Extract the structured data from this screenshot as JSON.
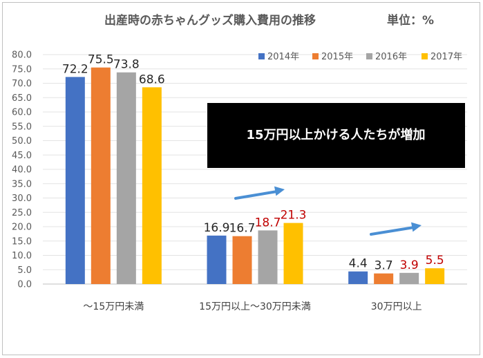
{
  "chart_data": {
    "type": "bar",
    "title": "出産時の赤ちゃんグッズ購入費用の推移",
    "unit": "単位：%",
    "categories": [
      "～15万円未満",
      "15万円以上～30万円未満",
      "30万円以上"
    ],
    "series": [
      {
        "name": "2014年",
        "color": "#4472c4",
        "values": [
          72.2,
          16.9,
          4.4
        ]
      },
      {
        "name": "2015年",
        "color": "#ed7d31",
        "values": [
          75.5,
          16.7,
          3.7
        ]
      },
      {
        "name": "2016年",
        "color": "#a5a5a5",
        "values": [
          73.8,
          18.7,
          3.9
        ]
      },
      {
        "name": "2017年",
        "color": "#ffc000",
        "values": [
          68.6,
          21.3,
          5.5
        ]
      }
    ],
    "label_colors": [
      [
        "#262626",
        "#262626",
        "#262626",
        "#262626"
      ],
      [
        "#262626",
        "#262626",
        "#c00000",
        "#c00000"
      ],
      [
        "#262626",
        "#262626",
        "#c00000",
        "#c00000"
      ]
    ],
    "ylim": [
      0,
      80
    ],
    "yticks": [
      "0.0",
      "5.0",
      "10.0",
      "15.0",
      "20.0",
      "25.0",
      "30.0",
      "35.0",
      "40.0",
      "45.0",
      "50.0",
      "55.0",
      "60.0",
      "65.0",
      "70.0",
      "75.0",
      "80.0"
    ],
    "grid": true,
    "legend": "top-right",
    "annotation": "15万円以上かける人たちが増加",
    "arrow_color": "#4a8fd4"
  }
}
